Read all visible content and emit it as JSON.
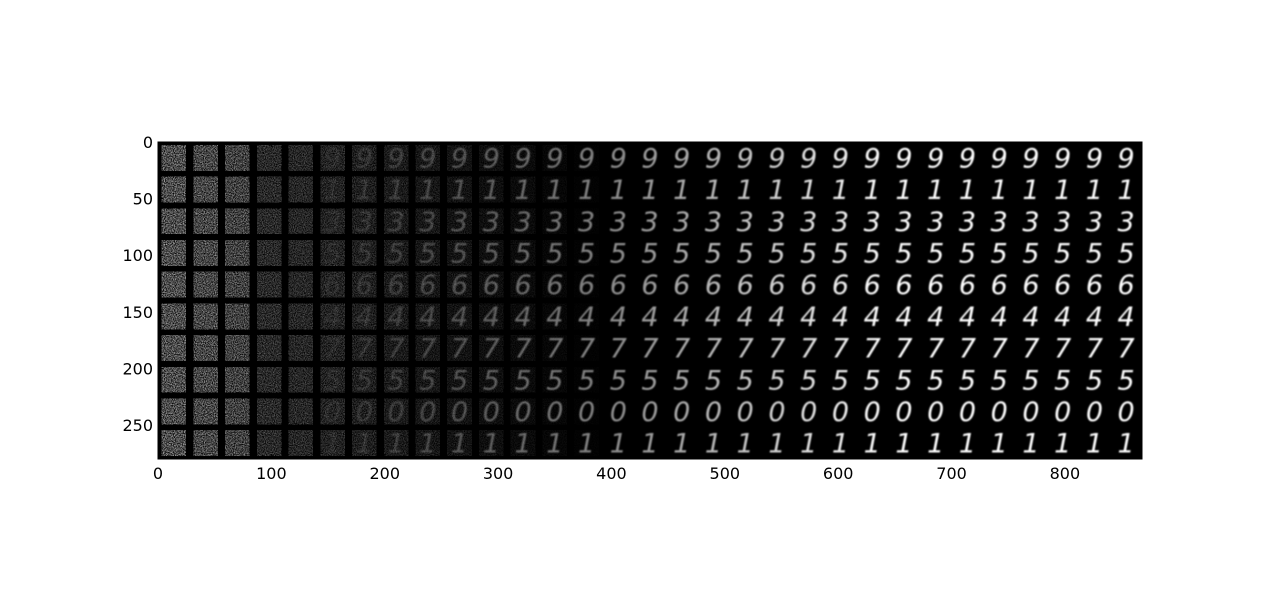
{
  "chart_data": {
    "type": "heatmap",
    "title": "",
    "xlabel": "",
    "ylabel": "",
    "colormap": "gray",
    "background": "#000000",
    "xlim": [
      0,
      868
    ],
    "ylim": [
      280,
      0
    ],
    "x_ticks": [
      0,
      100,
      200,
      300,
      400,
      500,
      600,
      700,
      800
    ],
    "y_ticks": [
      0,
      50,
      100,
      150,
      200,
      250
    ],
    "grid": false,
    "image_grid": {
      "rows": 10,
      "cols": 31,
      "cell_size": 28,
      "description": "grid of generated digit samples; columns progress from noise to clear digits",
      "row_digits": [
        "9",
        "1",
        "3",
        "5",
        "6",
        "4",
        "7",
        "5",
        "0",
        "1"
      ]
    }
  }
}
